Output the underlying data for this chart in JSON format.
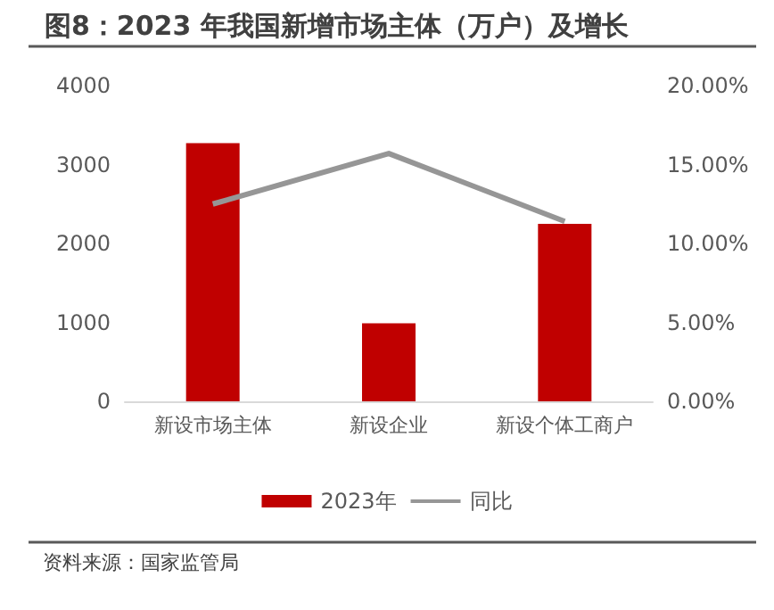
{
  "chart_data": {
    "type": "bar",
    "title": "图8：2023 年我国新增市场主体（万户）及增长",
    "categories": [
      "新设市场主体",
      "新设企业",
      "新设个体工商户"
    ],
    "series": [
      {
        "name": "2023年",
        "color": "#c00000",
        "values": [
          3270,
          990,
          2250
        ]
      },
      {
        "name": "同比",
        "type": "line",
        "axis": "y2",
        "color": "#969696",
        "values": [
          12.5,
          15.7,
          11.4
        ]
      }
    ],
    "ylim": [
      0,
      4000
    ],
    "yticks": [
      0,
      1000,
      2000,
      3000,
      4000
    ],
    "y2lim": [
      0,
      20
    ],
    "y2ticks": [
      {
        "value": 0,
        "label": "0.00%"
      },
      {
        "value": 5,
        "label": "5.00%"
      },
      {
        "value": 10,
        "label": "10.00%"
      },
      {
        "value": 15,
        "label": "15.00%"
      },
      {
        "value": 20,
        "label": "20.00%"
      }
    ],
    "grid": false,
    "legend": "bottom",
    "marker": "none",
    "annotations": [
      "资料来源：国家监管局"
    ]
  }
}
